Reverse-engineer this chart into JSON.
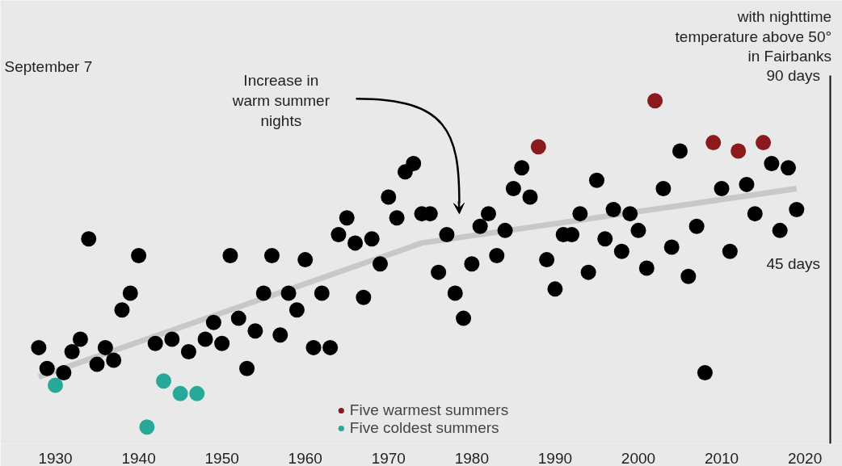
{
  "chart_data": {
    "type": "scatter",
    "xlim": [
      1923.4,
      2024.5
    ],
    "xticks": [
      1930,
      1940,
      1950,
      1960,
      1970,
      1980,
      1990,
      2000,
      2010,
      2020
    ],
    "ylabel": "with nighttime temperature above 50° in Fairbanks",
    "ylim": [
      2,
      108
    ],
    "yticks": [
      {
        "value": 45,
        "label": "45 days"
      },
      {
        "value": 90,
        "label": "90 days"
      }
    ],
    "legend": "bottom",
    "marker": "circle",
    "annotations": [
      "September 7",
      "Increase in warm summer nights"
    ],
    "series": [
      {
        "color": "#000000",
        "x": [
          1928,
          1929,
          1931,
          1932,
          1933,
          1934,
          1935,
          1936,
          1937,
          1938,
          1939,
          1940,
          1942,
          1944,
          1946,
          1948,
          1949,
          1950,
          1951,
          1952,
          1953,
          1954,
          1955,
          1956,
          1957,
          1958,
          1959,
          1960,
          1961,
          1962,
          1963,
          1964,
          1965,
          1966,
          1967,
          1968,
          1969,
          1970,
          1971,
          1972,
          1973,
          1974,
          1975,
          1976,
          1977,
          1978,
          1979,
          1980,
          1981,
          1982,
          1983,
          1984,
          1985,
          1986,
          1987,
          1989,
          1990,
          1991,
          1992,
          1993,
          1994,
          1995,
          1996,
          1997,
          1998,
          1999,
          2000,
          2001,
          2003,
          2004,
          2005,
          2006,
          2007,
          2008,
          2010,
          2011,
          2013,
          2014,
          2016,
          2017,
          2018,
          2019
        ],
        "values": [
          25,
          20,
          19,
          24,
          27,
          51,
          21,
          25,
          22,
          34,
          38,
          47,
          26,
          27,
          24,
          27,
          31,
          26,
          47,
          32,
          20,
          29,
          38,
          47,
          28,
          38,
          34,
          46,
          25,
          38,
          25,
          52,
          56,
          50,
          37,
          51,
          45,
          61,
          56,
          67,
          69,
          57,
          57,
          43,
          52,
          38,
          32,
          45,
          54,
          57,
          47,
          53,
          63,
          68,
          61,
          46,
          39,
          52,
          52,
          57,
          43,
          65,
          51,
          58,
          48,
          57,
          53,
          44,
          63,
          49,
          72,
          42,
          54,
          19,
          63,
          48,
          64,
          57,
          69,
          53,
          68,
          58
        ]
      },
      {
        "name": "Five warmest summers",
        "color": "#8b1a1f",
        "x": [
          1988,
          2002,
          2009,
          2012,
          2015
        ],
        "values": [
          73,
          84,
          74,
          72,
          74
        ]
      },
      {
        "name": "Five coldest summers",
        "color": "#27a99a",
        "x": [
          1930,
          1941,
          1943,
          1945,
          1947
        ],
        "values": [
          16,
          6,
          17,
          14,
          14
        ]
      },
      {
        "type": "line",
        "marker": "none",
        "color": "#c8c9c5",
        "x": [
          1928,
          1974,
          2019
        ],
        "values": [
          18,
          50,
          63
        ]
      }
    ]
  }
}
